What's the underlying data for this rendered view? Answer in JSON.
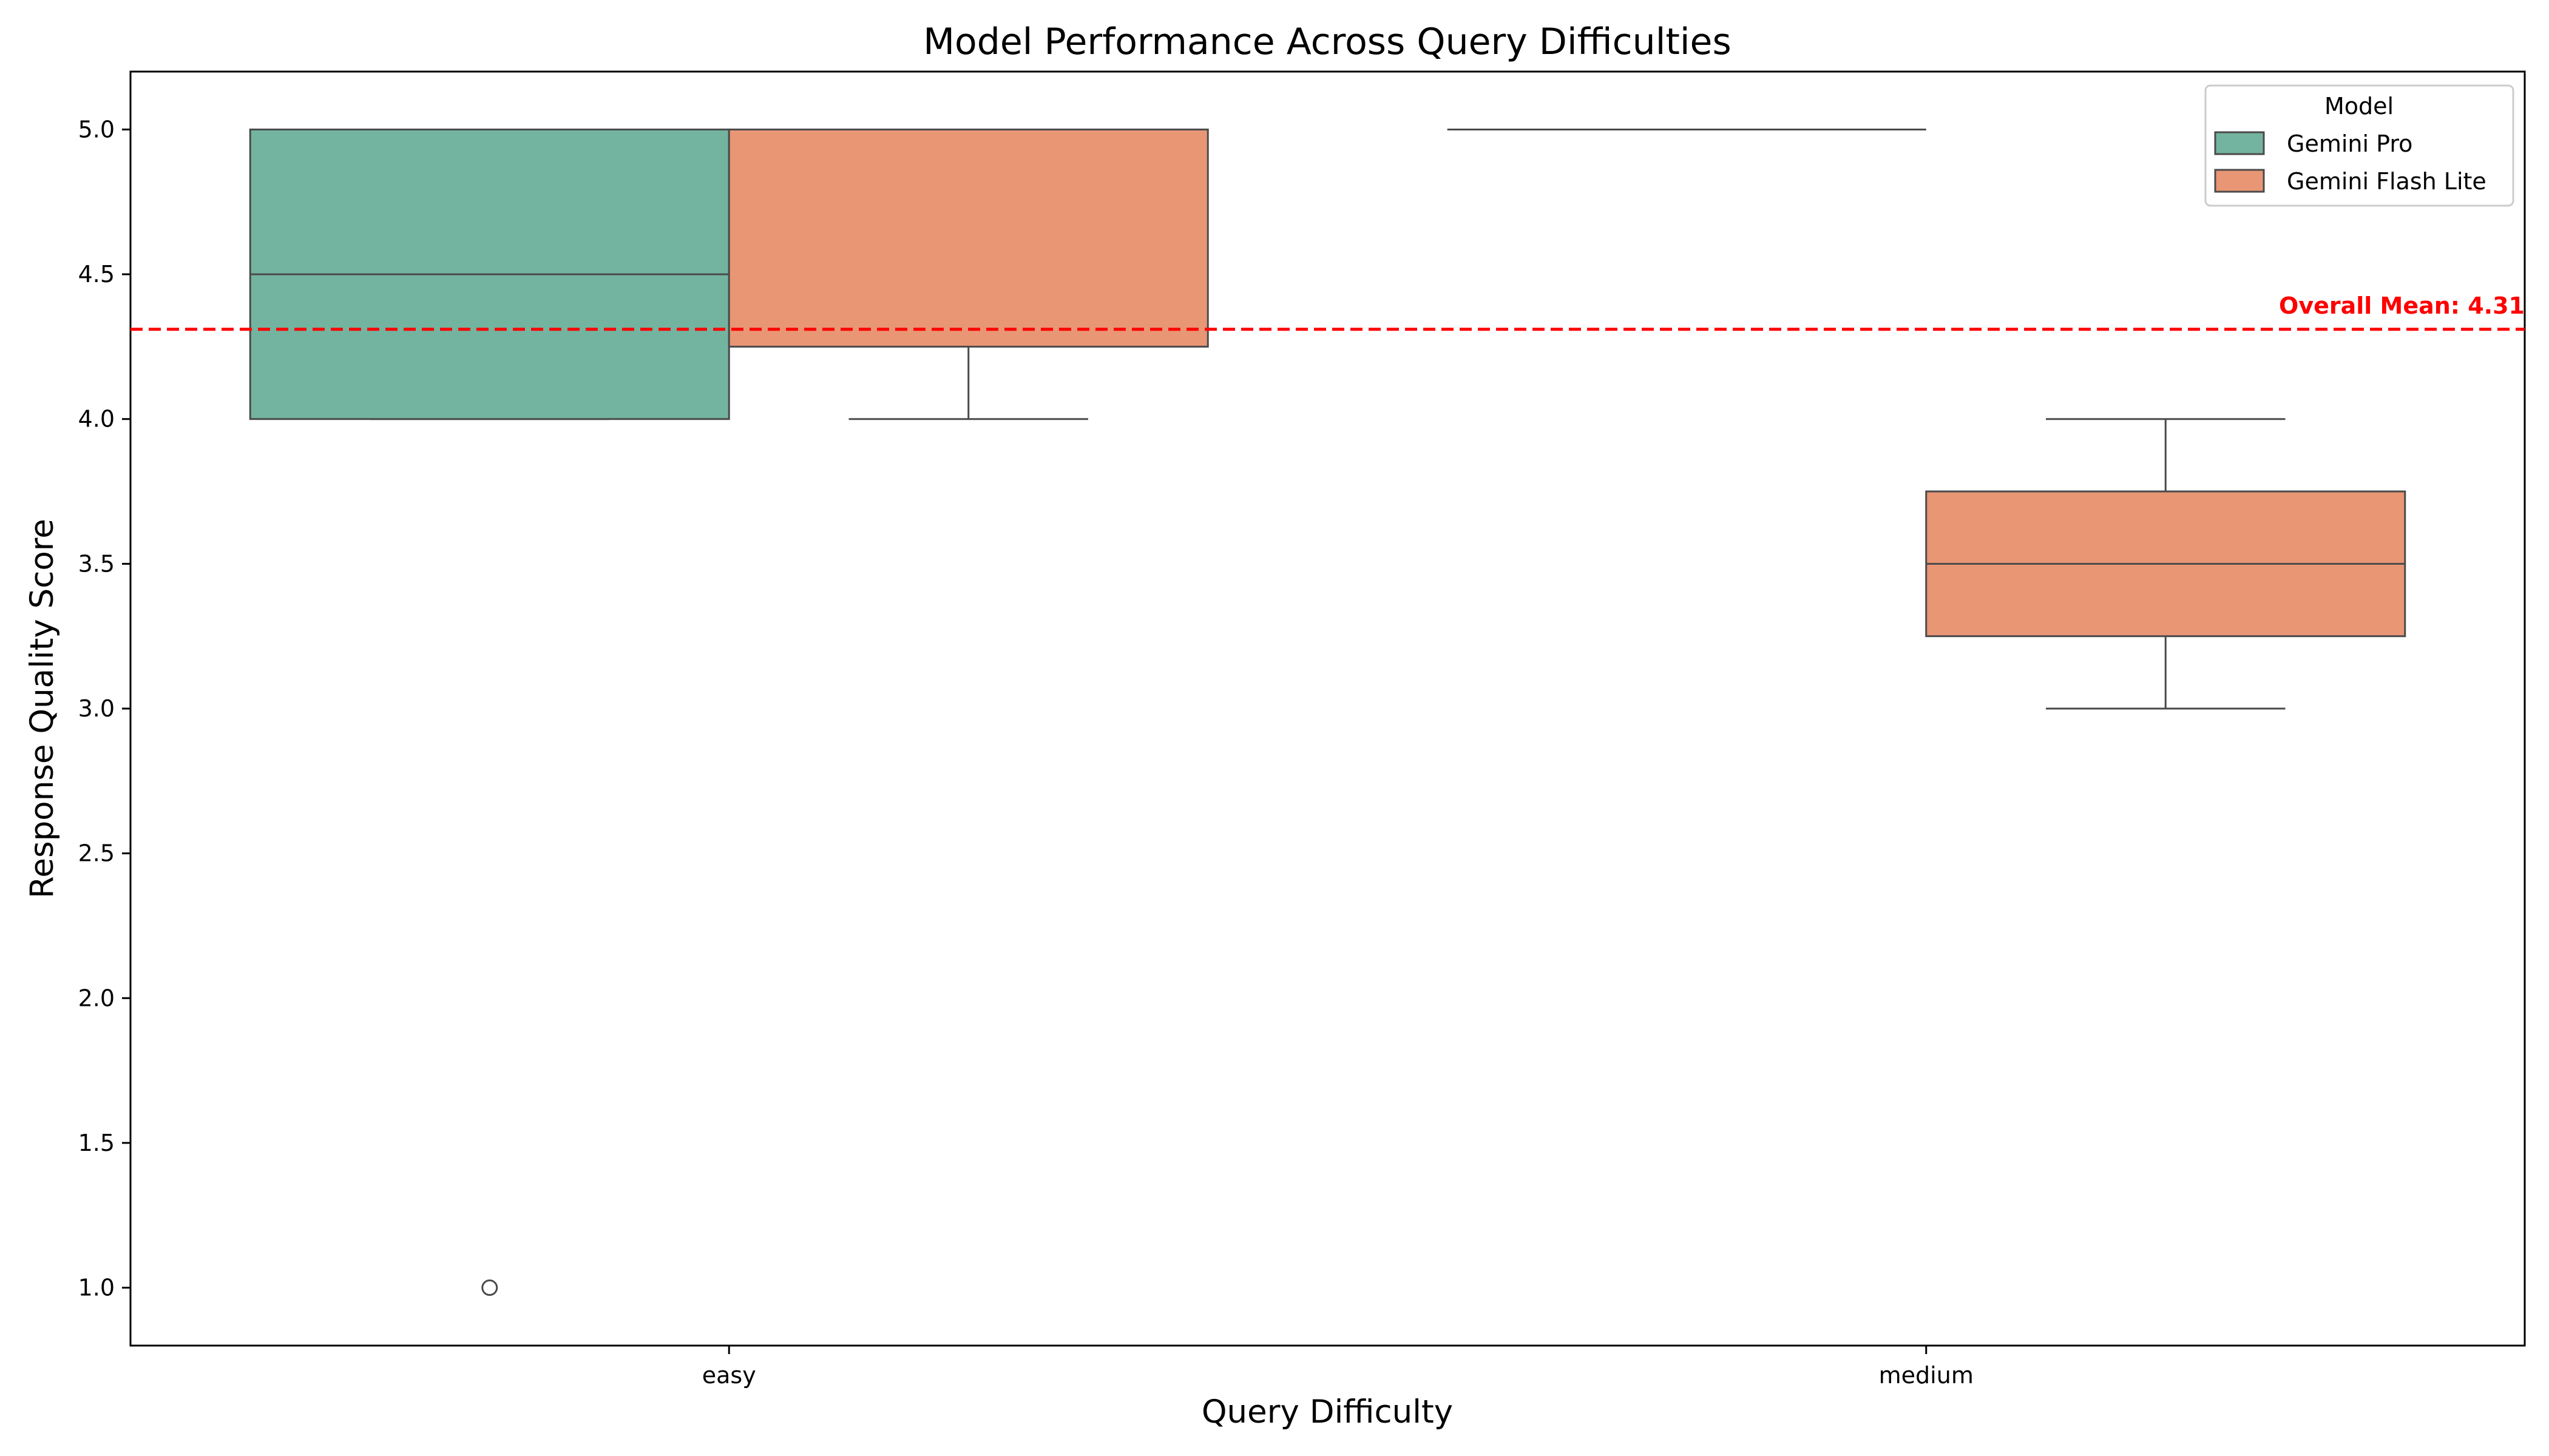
{
  "chart_data": {
    "type": "box",
    "title": "Model Performance Across Query Difficulties",
    "xlabel": "Query Difficulty",
    "ylabel": "Response Quality Score",
    "categories": [
      "easy",
      "medium"
    ],
    "ylim": [
      0.8,
      5.2
    ],
    "yticks": [
      "1.0",
      "1.5",
      "2.0",
      "2.5",
      "3.0",
      "3.5",
      "4.0",
      "4.5",
      "5.0"
    ],
    "grid": false,
    "legend": {
      "title": "Model",
      "position": "top-right"
    },
    "series": [
      {
        "name": "Gemini Pro",
        "color": "#73b4a0",
        "boxes": [
          {
            "category": "easy",
            "whisker_low": 4.0,
            "q1": 4.0,
            "median": 4.5,
            "q3": 5.0,
            "whisker_high": 5.0,
            "outliers": [
              1.0
            ]
          },
          {
            "category": "medium",
            "whisker_low": 5.0,
            "q1": 5.0,
            "median": 5.0,
            "q3": 5.0,
            "whisker_high": 5.0,
            "outliers": []
          }
        ]
      },
      {
        "name": "Gemini Flash Lite",
        "color": "#e99675",
        "boxes": [
          {
            "category": "easy",
            "whisker_low": 4.0,
            "q1": 4.25,
            "median": 5.0,
            "q3": 5.0,
            "whisker_high": 5.0,
            "outliers": []
          },
          {
            "category": "medium",
            "whisker_low": 3.0,
            "q1": 3.25,
            "median": 3.5,
            "q3": 3.75,
            "whisker_high": 4.0,
            "outliers": []
          }
        ]
      }
    ],
    "reference_line": {
      "value": 4.31,
      "label": "Overall Mean: 4.31",
      "color": "#ff0000",
      "style": "dashed"
    }
  }
}
